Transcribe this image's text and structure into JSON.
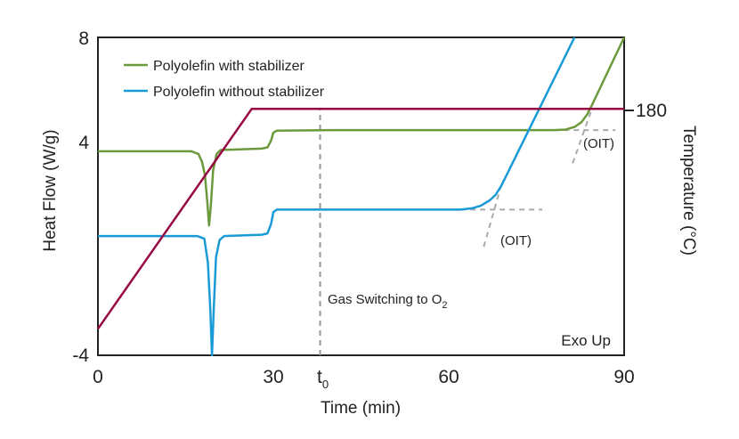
{
  "chart_data": {
    "type": "line",
    "xlabel": "Time (min)",
    "ylabel": "Heat Flow (W/g)",
    "y2label": "Temperature (°C)",
    "xlim": [
      0,
      90
    ],
    "ylim": [
      -4,
      8
    ],
    "x_ticks": [
      {
        "value": 0,
        "label": "0"
      },
      {
        "value": 30,
        "label": "30"
      },
      {
        "value": 38,
        "label": "t",
        "sub": "0"
      },
      {
        "value": 60,
        "label": "60"
      },
      {
        "value": 90,
        "label": "90"
      }
    ],
    "y_ticks": [
      {
        "value": 8,
        "label": "8"
      },
      {
        "value": 4,
        "label": "4"
      },
      {
        "value": -4,
        "label": "-4"
      }
    ],
    "y2_tick": {
      "label": "180",
      "y_position": 5.3
    },
    "legend_position": "top-left",
    "grid": false,
    "series": [
      {
        "name": "Polyolefin with stabilizer",
        "color": "#6b9a3c",
        "points": [
          [
            0,
            3.7
          ],
          [
            16,
            3.7
          ],
          [
            17.2,
            3.6
          ],
          [
            17.8,
            3.3
          ],
          [
            18.3,
            2.8
          ],
          [
            18.7,
            1.8
          ],
          [
            19.0,
            0.9
          ],
          [
            19.3,
            1.6
          ],
          [
            19.7,
            3.0
          ],
          [
            20.3,
            3.6
          ],
          [
            21,
            3.75
          ],
          [
            28,
            3.8
          ],
          [
            29,
            3.85
          ],
          [
            29.6,
            4.1
          ],
          [
            30.0,
            4.4
          ],
          [
            30.6,
            4.48
          ],
          [
            40,
            4.5
          ],
          [
            60,
            4.5
          ],
          [
            78,
            4.5
          ],
          [
            80,
            4.52
          ],
          [
            81.5,
            4.62
          ],
          [
            82.7,
            4.8
          ],
          [
            83.7,
            5.1
          ],
          [
            84.5,
            5.45
          ],
          [
            90,
            8.0
          ]
        ]
      },
      {
        "name": "Polyolefin without stabilizer",
        "color": "#1a9ad6",
        "points": [
          [
            0,
            0.5
          ],
          [
            17,
            0.5
          ],
          [
            18.2,
            0.4
          ],
          [
            18.8,
            -0.5
          ],
          [
            19.2,
            -2.2
          ],
          [
            19.5,
            -4.0
          ],
          [
            19.8,
            -2.3
          ],
          [
            20.2,
            -0.3
          ],
          [
            20.8,
            0.35
          ],
          [
            21.6,
            0.5
          ],
          [
            28,
            0.55
          ],
          [
            29,
            0.6
          ],
          [
            29.6,
            0.95
          ],
          [
            30.0,
            1.4
          ],
          [
            30.6,
            1.5
          ],
          [
            40,
            1.5
          ],
          [
            62,
            1.5
          ],
          [
            64,
            1.55
          ],
          [
            65.5,
            1.65
          ],
          [
            67,
            1.85
          ],
          [
            68,
            2.05
          ],
          [
            69,
            2.4
          ],
          [
            81.5,
            8.0
          ]
        ]
      },
      {
        "name": "Temperature",
        "color": "#990a45",
        "points": [
          [
            0,
            -3.0
          ],
          [
            26.3,
            5.3
          ],
          [
            90,
            5.3
          ]
        ]
      }
    ],
    "guides": [
      {
        "type": "vline",
        "x": 38,
        "y_from": -4,
        "y_to": 5.35,
        "color": "#999999"
      },
      {
        "type": "segment",
        "from": [
          78,
          4.5
        ],
        "to": [
          88.5,
          4.5
        ],
        "color": "#aaaaaa"
      },
      {
        "type": "segment",
        "from": [
          81.2,
          3.25
        ],
        "to": [
          84.4,
          5.25
        ],
        "color": "#aaaaaa"
      },
      {
        "type": "segment",
        "from": [
          62,
          1.5
        ],
        "to": [
          76,
          1.5
        ],
        "color": "#aaaaaa"
      },
      {
        "type": "segment",
        "from": [
          66,
          0.1
        ],
        "to": [
          69.2,
          2.6
        ],
        "color": "#aaaaaa"
      }
    ],
    "annotations": {
      "oit_upper": "(OIT)",
      "oit_lower": "(OIT)",
      "gas_switching": "Gas Switching to O",
      "gas_switching_sub": "2",
      "exo_up": "Exo Up"
    }
  }
}
